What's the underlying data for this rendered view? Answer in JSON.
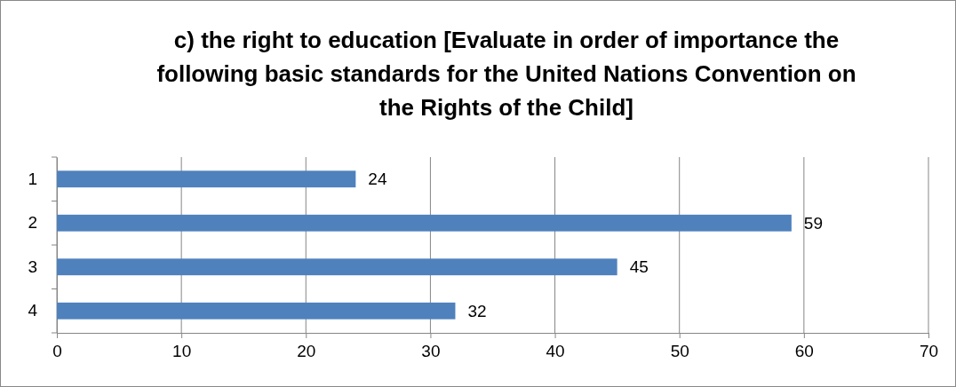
{
  "chart_data": {
    "type": "bar",
    "orientation": "horizontal",
    "title": "c) the right to education [Evaluate in order of importance the following basic standards for the United Nations Convention on the Rights of the Child]",
    "categories": [
      "1",
      "2",
      "3",
      "4"
    ],
    "values": [
      24,
      59,
      45,
      32
    ],
    "color": "#4f81bd",
    "xlim": [
      0,
      70
    ],
    "xticks": [
      0,
      10,
      20,
      30,
      40,
      50,
      60,
      70
    ],
    "grid": "x",
    "data_labels": true
  }
}
